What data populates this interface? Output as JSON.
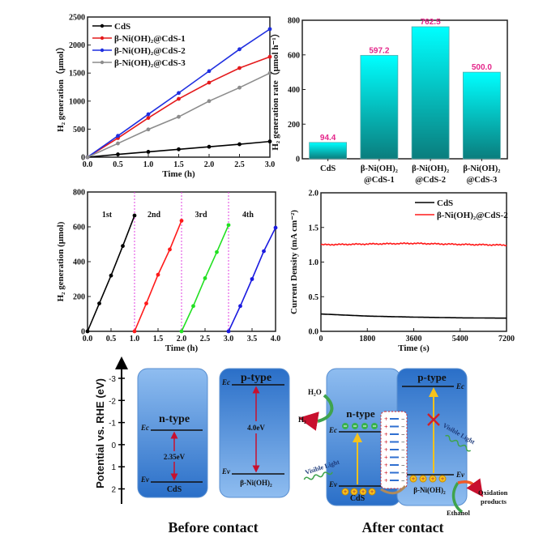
{
  "chart_data": [
    {
      "type": "line",
      "xlabel": "Time (h)",
      "ylabel": "H₂ generation（μmol）",
      "xlim": [
        0,
        3
      ],
      "ylim": [
        0,
        2500
      ],
      "xticks": [
        "0.0",
        "0.5",
        "1.0",
        "1.5",
        "2.0",
        "2.5",
        "3.0"
      ],
      "yticks": [
        "0",
        "500",
        "1000",
        "1500",
        "2000",
        "2500"
      ],
      "legend": "top-left",
      "x": [
        0,
        0.5,
        1.0,
        1.5,
        2.0,
        2.5,
        3.0
      ],
      "series": [
        {
          "name": "CdS",
          "color": "#000000",
          "values": [
            0,
            50,
            95,
            140,
            185,
            230,
            280
          ]
        },
        {
          "name": "β-Ni(OH)₂@CdS-1",
          "color": "#e41a1c",
          "values": [
            0,
            340,
            700,
            1040,
            1330,
            1590,
            1790
          ]
        },
        {
          "name": "β-Ni(OH)₂@CdS-2",
          "color": "#1f2fe0",
          "values": [
            0,
            380,
            765,
            1145,
            1535,
            1925,
            2285
          ]
        },
        {
          "name": "β-Ni(OH)₂@CdS-3",
          "color": "#8c8c8c",
          "values": [
            0,
            245,
            495,
            720,
            1000,
            1240,
            1500
          ]
        }
      ]
    },
    {
      "type": "bar",
      "ylabel": "H₂ generation rate（μmol h⁻¹）",
      "ylim": [
        0,
        800
      ],
      "yticks": [
        "0",
        "200",
        "400",
        "600",
        "800"
      ],
      "categories": [
        "CdS",
        "β-Ni(OH)₂|@CdS-1",
        "β-Ni(OH)₂|@CdS-2",
        "β-Ni(OH)₂|@CdS-3"
      ],
      "values": [
        94.4,
        597.2,
        762.5,
        500.0
      ],
      "data_labels": [
        "94.4",
        "597.2",
        "762.5",
        "500.0"
      ],
      "bar_color": "#00f0f0",
      "label_color": "#e4268a"
    },
    {
      "type": "line",
      "xlabel": "Time (h)",
      "ylabel": "H₂ generation (μmol)",
      "xlim": [
        0,
        4
      ],
      "ylim": [
        0,
        800
      ],
      "xticks": [
        "0.0",
        "0.5",
        "1.0",
        "1.5",
        "2.0",
        "2.5",
        "3.0",
        "3.5",
        "4.0"
      ],
      "yticks": [
        "0",
        "200",
        "400",
        "600",
        "800"
      ],
      "cycle_boundaries": [
        1,
        2,
        3
      ],
      "series": [
        {
          "name": "1st",
          "color": "#000000",
          "x": [
            0,
            0.25,
            0.5,
            0.75,
            1.0
          ],
          "values": [
            0,
            160,
            320,
            490,
            665
          ]
        },
        {
          "name": "2nd",
          "color": "#ff1a1a",
          "x": [
            1.0,
            1.25,
            1.5,
            1.75,
            2.0
          ],
          "values": [
            0,
            160,
            325,
            470,
            635
          ]
        },
        {
          "name": "3rd",
          "color": "#22e022",
          "x": [
            2.0,
            2.25,
            2.5,
            2.75,
            3.0
          ],
          "values": [
            0,
            145,
            305,
            455,
            610
          ]
        },
        {
          "name": "4th",
          "color": "#1a1ae0",
          "x": [
            3.0,
            3.25,
            3.5,
            3.75,
            4.0
          ],
          "values": [
            0,
            145,
            300,
            460,
            595
          ]
        }
      ]
    },
    {
      "type": "line",
      "xlabel": "Time (s)",
      "ylabel": "Current Density (mA cm⁻²)",
      "xlim": [
        0,
        7200
      ],
      "ylim": [
        0,
        2.0
      ],
      "xticks": [
        "0",
        "1800",
        "3600",
        "5400",
        "7200"
      ],
      "yticks": [
        "0.0",
        "0.5",
        "1.0",
        "1.5",
        "2.0"
      ],
      "legend": "top-right",
      "x": [
        0,
        1800,
        3600,
        5400,
        7200
      ],
      "series": [
        {
          "name": "CdS",
          "color": "#000000",
          "values": [
            0.25,
            0.22,
            0.205,
            0.195,
            0.19
          ]
        },
        {
          "name": "β-Ni(OH)₂@CdS-2",
          "color": "#ff1a1a",
          "values": [
            1.25,
            1.26,
            1.27,
            1.255,
            1.245
          ]
        }
      ]
    }
  ],
  "diagram": {
    "axis_label": "Potential vs. RHE (eV)",
    "axis_ticks": [
      "-3",
      "-2",
      "-1",
      "0",
      "1",
      "2"
    ],
    "before": {
      "title": "Before contact",
      "n_type": "n-type",
      "p_type": "p-type",
      "ec": "Ec",
      "ev": "Ev",
      "cds_gap": "2.35eV",
      "ni_gap": "4.0eV",
      "cds": "CdS",
      "ni": "β-Ni(OH)₂"
    },
    "after": {
      "title": "After contact",
      "n_type": "n-type",
      "p_type": "p-type",
      "ec": "Ec",
      "ev": "Ev",
      "cds": "CdS",
      "ni": "β-Ni(OH)₂",
      "h2o": "H₂O",
      "h2": "H₂",
      "visible_light": "Visible Light",
      "oxidation_products": [
        "Oxidation",
        "products"
      ],
      "ethanol": "Ethanol"
    }
  }
}
